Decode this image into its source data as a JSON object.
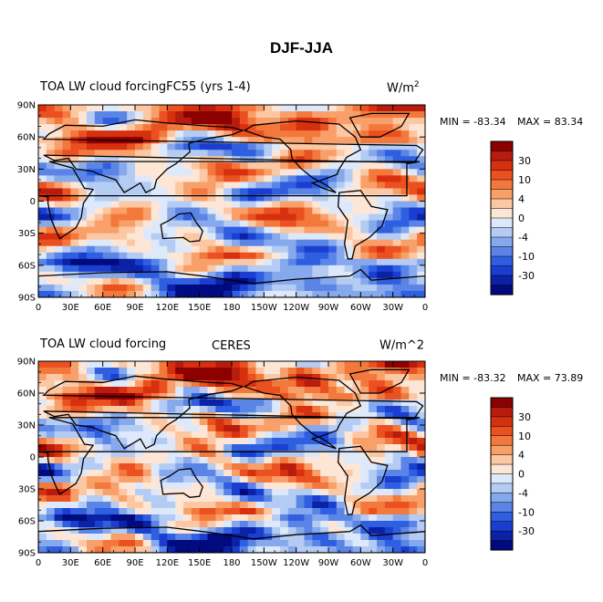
{
  "figure": {
    "title": "DJF-JJA"
  },
  "chart_data": [
    {
      "type": "heatmap",
      "left_title": "TOA LW cloud forcingFC55 (yrs 1-4)",
      "center_title": "",
      "units_base": "W/m",
      "units_sup": "2",
      "min_text": "MIN = -83.34",
      "max_text": "MAX =  83.34",
      "x_ticks": [
        "0",
        "30E",
        "60E",
        "90E",
        "120E",
        "150E",
        "180",
        "150W",
        "120W",
        "90W",
        "60W",
        "30W",
        "0"
      ],
      "y_ticks": [
        "90N",
        "60N",
        "30N",
        "0",
        "30S",
        "60S",
        "90S"
      ],
      "xlim": [
        0,
        360
      ],
      "ylim": [
        -90,
        90
      ],
      "colorbar_levels": [
        "30",
        "10",
        "4",
        "0",
        "-4",
        "-10",
        "-30"
      ]
    },
    {
      "type": "heatmap",
      "left_title": "TOA LW cloud forcing",
      "center_title": "CERES",
      "units_base": "W/m^2",
      "units_sup": "",
      "min_text": "MIN = -83.32",
      "max_text": "MAX =  73.89",
      "x_ticks": [
        "0",
        "30E",
        "60E",
        "90E",
        "120E",
        "150E",
        "180",
        "150W",
        "120W",
        "90W",
        "60W",
        "30W",
        "0"
      ],
      "y_ticks": [
        "90N",
        "60N",
        "30N",
        "0",
        "30S",
        "60S",
        "90S"
      ],
      "xlim": [
        0,
        360
      ],
      "ylim": [
        -90,
        90
      ],
      "colorbar_levels": [
        "30",
        "10",
        "4",
        "0",
        "-4",
        "-10",
        "-30"
      ]
    }
  ],
  "colors": {
    "scale": [
      "#8b0000",
      "#b81c0e",
      "#d7300f",
      "#ea5020",
      "#f3783c",
      "#f9a06a",
      "#fcc7a3",
      "#fde6d6",
      "#dde9fb",
      "#b4ccf3",
      "#86a8ec",
      "#5a84e6",
      "#2f5fe0",
      "#1a3fd0",
      "#0b22a6",
      "#020a80"
    ]
  }
}
